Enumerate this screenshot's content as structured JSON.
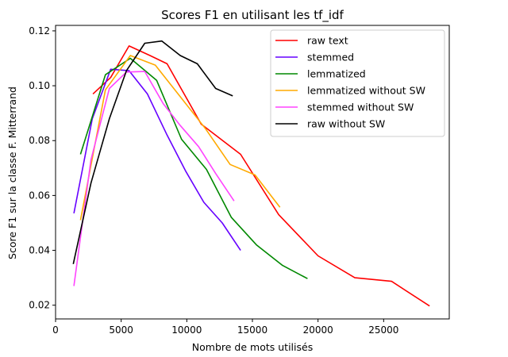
{
  "chart_data": {
    "type": "line",
    "title": "Scores F1 en utilisant les tf_idf",
    "xlabel": "Nombre de mots utilisés",
    "ylabel": "Score F1 sur la classe F. Mitterrand",
    "xlim": [
      0,
      30000
    ],
    "ylim": [
      0.015,
      0.122
    ],
    "xticks": [
      0,
      5000,
      10000,
      15000,
      20000,
      25000
    ],
    "yticks": [
      0.02,
      0.04,
      0.06,
      0.08,
      0.1,
      0.12
    ],
    "xtick_labels": [
      "0",
      "5000",
      "10000",
      "15000",
      "20000",
      "25000"
    ],
    "ytick_labels": [
      "0.02",
      "0.04",
      "0.06",
      "0.08",
      "0.10",
      "0.12"
    ],
    "grid": false,
    "legend_position": "top-right",
    "series": [
      {
        "name": "raw text",
        "color": "#ff0000",
        "x": [
          2850,
          4200,
          5600,
          7200,
          8500,
          11100,
          14100,
          17000,
          20000,
          22800,
          25600,
          28500
        ],
        "y": [
          0.097,
          0.103,
          0.1145,
          0.111,
          0.108,
          0.086,
          0.075,
          0.053,
          0.038,
          0.03,
          0.0287,
          0.0197
        ]
      },
      {
        "name": "stemmed",
        "color": "#6600ff",
        "x": [
          1400,
          2800,
          4200,
          5600,
          7000,
          8500,
          9900,
          11300,
          12700,
          14100
        ],
        "y": [
          0.0535,
          0.088,
          0.106,
          0.1055,
          0.097,
          0.082,
          0.069,
          0.0575,
          0.05,
          0.04
        ]
      },
      {
        "name": "lemmatized",
        "color": "#008800",
        "x": [
          1900,
          3800,
          5700,
          7700,
          9600,
          11500,
          13400,
          15300,
          17300,
          19200
        ],
        "y": [
          0.075,
          0.104,
          0.11,
          0.102,
          0.0805,
          0.0695,
          0.052,
          0.042,
          0.0345,
          0.0297
        ]
      },
      {
        "name": "lemmatized without SW",
        "color": "#ffaa00",
        "x": [
          1900,
          3800,
          5700,
          7600,
          9500,
          11400,
          13300,
          15200,
          17100
        ],
        "y": [
          0.051,
          0.0985,
          0.111,
          0.1075,
          0.096,
          0.0845,
          0.0713,
          0.0675,
          0.0557
        ]
      },
      {
        "name": "stemmed without SW",
        "color": "#ff44ff",
        "x": [
          1400,
          2700,
          4100,
          5400,
          6800,
          8200,
          9500,
          10900,
          12200,
          13600
        ],
        "y": [
          0.027,
          0.073,
          0.099,
          0.105,
          0.1052,
          0.0935,
          0.0855,
          0.0778,
          0.068,
          0.058
        ]
      },
      {
        "name": "raw without SW",
        "color": "#000000",
        "x": [
          1350,
          2700,
          4100,
          5400,
          6800,
          8100,
          9500,
          10800,
          12200,
          13500
        ],
        "y": [
          0.035,
          0.0645,
          0.088,
          0.1055,
          0.1155,
          0.1163,
          0.111,
          0.108,
          0.099,
          0.0963
        ]
      }
    ]
  }
}
